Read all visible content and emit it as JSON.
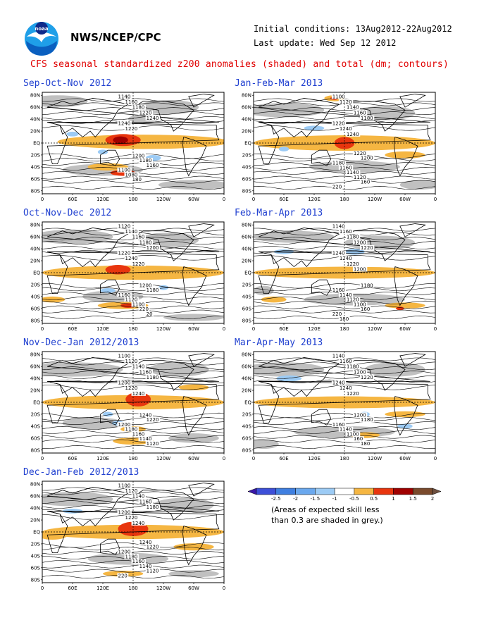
{
  "header": {
    "org": "NWS/NCEP/CPC",
    "initial_conditions": "Initial conditions: 13Aug2012-22Aug2012",
    "last_update": "Last update: Wed Sep 12 2012",
    "title": "CFS seasonal standardized z200 anomalies (shaded) and total (dm; contours)",
    "logo_text": "noaa"
  },
  "colors": {
    "title": "#e00000",
    "panel_title": "#2040d0",
    "grey_low_skill": "#c0c0c0",
    "orange": "#f5b642",
    "red": "#e8350e",
    "dark_red": "#a00000",
    "light_blue": "#9ccbf5",
    "blue": "#3f7fe0"
  },
  "axes": {
    "lat_labels": [
      "80N",
      "60N",
      "40N",
      "20N",
      "EQ",
      "20S",
      "40S",
      "60S",
      "80S"
    ],
    "lon_labels": [
      "0",
      "60E",
      "120E",
      "180",
      "120W",
      "60W",
      "0"
    ]
  },
  "panels": [
    {
      "title": "Sep-Oct-Nov 2012",
      "contours": [
        "1140",
        "1160",
        "1180",
        "1220",
        "1240",
        "1240",
        "1220",
        "1200",
        "1180",
        "1160",
        "1100",
        "1080",
        "180"
      ],
      "anomaly": {
        "max_positive": "2 to 2.5 near 150E-180 EQ",
        "min_negative": "-1 to -0.5"
      }
    },
    {
      "title": "Jan-Feb-Mar 2013",
      "contours": [
        "1100",
        "1120",
        "1140",
        "1160",
        "1180",
        "1220",
        "1240",
        "1240",
        "1220",
        "1200",
        "1180",
        "1160",
        "1140",
        "1120",
        "160",
        "220"
      ],
      "anomaly": {
        "max_positive": "1.5 to 2 near 180 EQ",
        "min_negative": "-1 to -0.5"
      }
    },
    {
      "title": "Oct-Nov-Dec 2012",
      "contours": [
        "1120",
        "1140",
        "1160",
        "1180",
        "1200",
        "1220",
        "1240",
        "1220",
        "1200",
        "1180",
        "1160",
        "1120",
        "1100",
        "220",
        "20"
      ],
      "anomaly": {
        "max_positive": "1.5 to 2 near 150E EQ",
        "min_negative": "-1 to -0.5"
      }
    },
    {
      "title": "Feb-Mar-Apr 2013",
      "contours": [
        "1140",
        "1160",
        "1180",
        "1200",
        "1220",
        "1240",
        "1240",
        "1220",
        "1200",
        "1180",
        "1160",
        "1140",
        "1120",
        "1100",
        "160",
        "220",
        "180"
      ],
      "anomaly": {
        "max_positive": "1 to 1.5 near 150E",
        "min_negative": "-1 to -0.5"
      }
    },
    {
      "title": "Nov-Dec-Jan 2012/2013",
      "contours": [
        "1100",
        "1120",
        "1140",
        "1160",
        "1180",
        "1200",
        "1220",
        "1240",
        "1240",
        "1220",
        "1200",
        "1180",
        "1160",
        "1140",
        "1120"
      ],
      "anomaly": {
        "max_positive": "1.5 to 2 near 180 EQ",
        "min_negative": "-1 to -0.5"
      }
    },
    {
      "title": "Mar-Apr-May 2013",
      "contours": [
        "1140",
        "1160",
        "1180",
        "1200",
        "1220",
        "1240",
        "1240",
        "1220",
        "1200",
        "1180",
        "1160",
        "1140",
        "1100",
        "160",
        "180"
      ],
      "anomaly": {
        "max_positive": "1 to 1.5 near 150E",
        "min_negative": "-1 to -0.5"
      }
    },
    {
      "title": "Dec-Jan-Feb 2012/2013",
      "contours": [
        "1100",
        "1120",
        "1140",
        "1160",
        "1180",
        "1200",
        "1220",
        "1240",
        "1240",
        "1220",
        "1200",
        "1180",
        "1160",
        "1140",
        "1120",
        "220"
      ],
      "anomaly": {
        "max_positive": "1.5 to 2 near 180 EQ",
        "min_negative": "-1 to -0.5"
      }
    }
  ],
  "colorbar": {
    "labels": [
      "-2.5",
      "-2",
      "-1.5",
      "-1",
      "-0.5",
      "0.5",
      "1",
      "1.5",
      "2",
      "2.5"
    ],
    "colors": [
      "#3b18a8",
      "#3d4fd8",
      "#3f7fe0",
      "#6aa8ee",
      "#9ccbf5",
      "#ffffff",
      "#f5b642",
      "#e8350e",
      "#a00000",
      "#7a4a2c",
      "#6e5040"
    ]
  },
  "note": {
    "line1": "(Areas of expected skill less",
    "line2": "than 0.3 are shaded in grey.)"
  }
}
